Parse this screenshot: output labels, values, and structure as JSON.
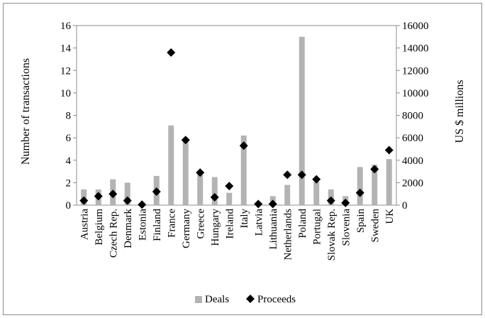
{
  "chart_data": {
    "type": "bar",
    "categories": [
      "Austria",
      "Belgium",
      "Czech Rep.",
      "Denmark",
      "Estonia",
      "Finland",
      "France",
      "Germany",
      "Greece",
      "Hungary",
      "Ireland",
      "Italy",
      "Latvia",
      "Lithuania",
      "Netherlands",
      "Poland",
      "Portugal",
      "Slovak Rep.",
      "Slovenia",
      "Spain",
      "Sweden",
      "UK"
    ],
    "series": [
      {
        "name": "Deals",
        "kind": "bar",
        "axis": "left",
        "color": "#b3b3b3",
        "values": [
          1.4,
          1.4,
          2.3,
          2.0,
          0.1,
          2.6,
          7.1,
          5.9,
          2.8,
          2.5,
          1.1,
          6.2,
          0.1,
          0.8,
          1.8,
          15.0,
          2.1,
          1.4,
          0.8,
          3.4,
          3.6,
          4.1
        ]
      },
      {
        "name": "Proceeds",
        "kind": "marker",
        "marker": "diamond",
        "axis": "right",
        "color": "#000000",
        "values": [
          400,
          800,
          1000,
          400,
          50,
          1200,
          13600,
          5800,
          2900,
          700,
          1700,
          5300,
          100,
          100,
          2700,
          2700,
          2300,
          400,
          200,
          1100,
          3200,
          4900
        ]
      }
    ],
    "ylabel": "Number of transactions",
    "y2label": "US $ millions",
    "ylim": [
      0,
      16
    ],
    "y2lim": [
      0,
      16000
    ],
    "yticks": [
      "0",
      "2",
      "4",
      "6",
      "8",
      "10",
      "12",
      "14",
      "16"
    ],
    "y2ticks": [
      "0",
      "2000",
      "4000",
      "6000",
      "8000",
      "10000",
      "12000",
      "14000",
      "16000"
    ],
    "legend_position": "bottom",
    "grid": false
  }
}
